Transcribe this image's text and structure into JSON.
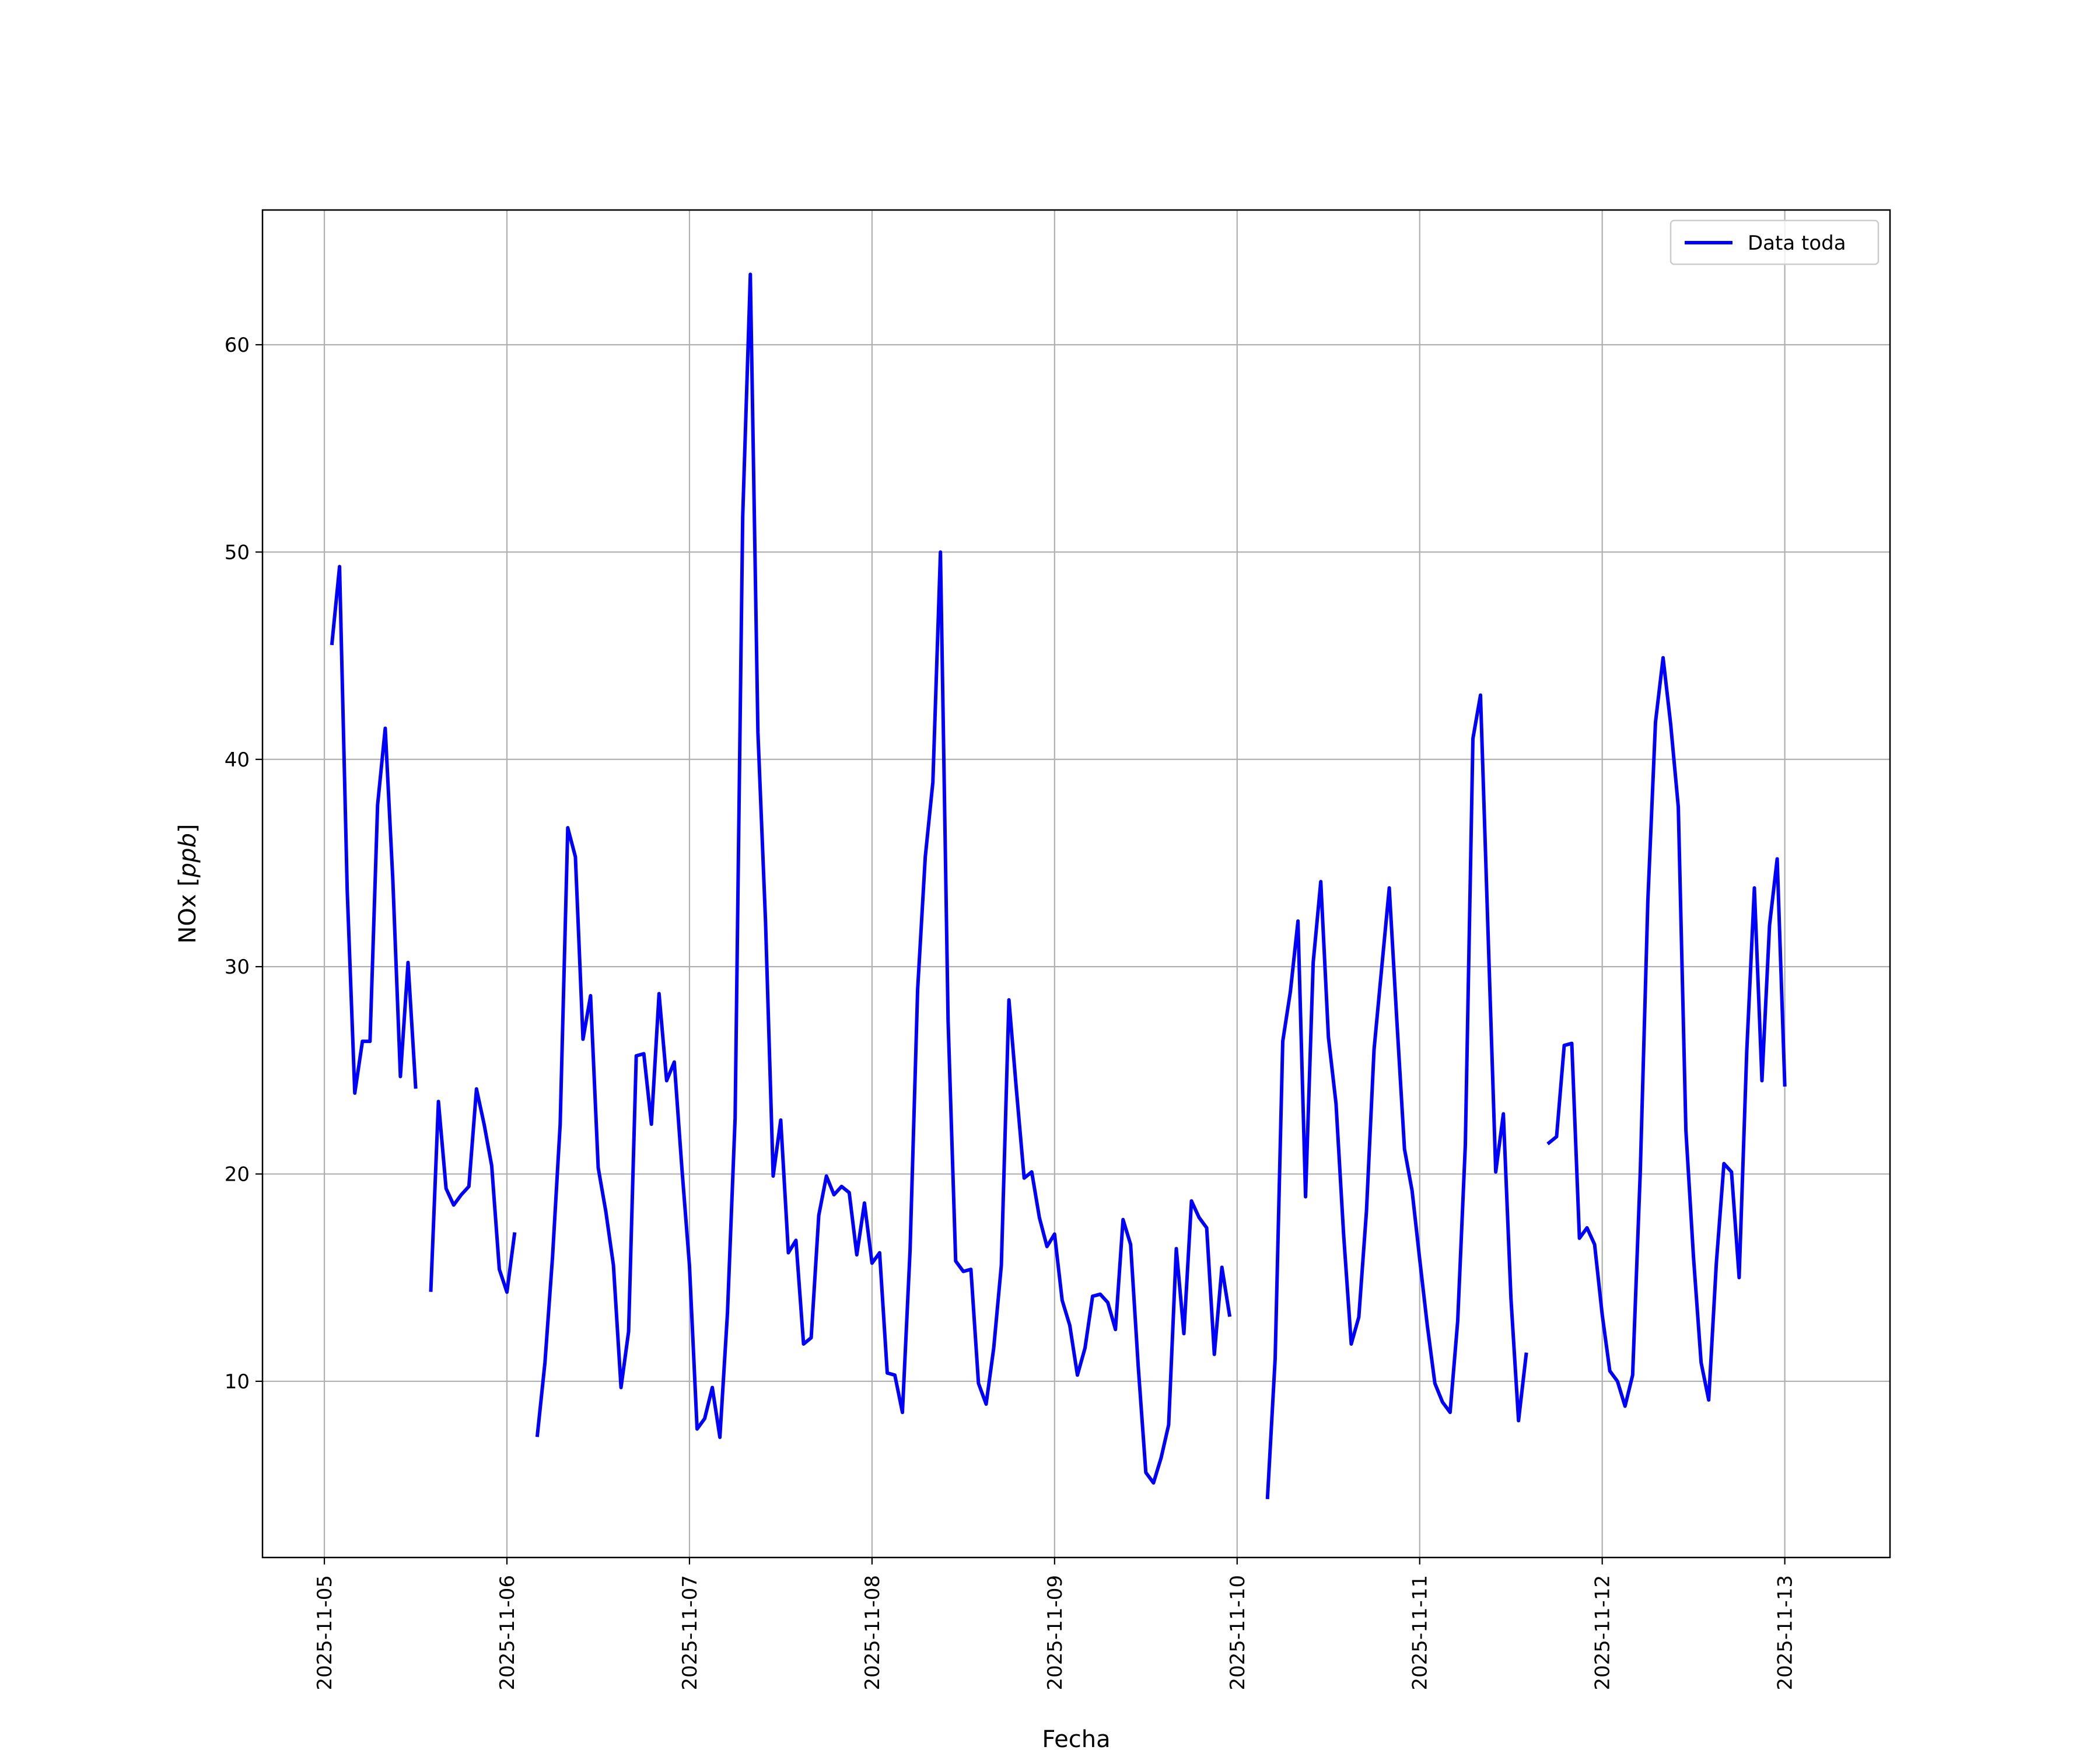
{
  "chart_data": {
    "type": "line",
    "xlabel": "Fecha",
    "ylabel": "NOx [ppb]",
    "ylabel_main": "NOx [",
    "ylabel_unit": "ppb",
    "ylabel_close": "]",
    "xlim": [
      "2025-11-04T15:52",
      "2025-11-13T13:50"
    ],
    "ylim": [
      1.5,
      66.5
    ],
    "x_ticks": [
      "2025-11-05",
      "2025-11-06",
      "2025-11-07",
      "2025-11-08",
      "2025-11-09",
      "2025-11-10",
      "2025-11-11",
      "2025-11-12",
      "2025-11-13"
    ],
    "y_ticks": [
      10,
      20,
      30,
      40,
      50,
      60
    ],
    "grid": true,
    "legend_position": "top-right",
    "line_color": "#0000ff",
    "series": [
      {
        "name": "Data toda",
        "segments": [
          [
            [
              "2025-11-05T01:00",
              45.6
            ],
            [
              "2025-11-05T02:00",
              49.3
            ],
            [
              "2025-11-05T03:00",
              33.7
            ],
            [
              "2025-11-05T04:00",
              23.9
            ],
            [
              "2025-11-05T05:00",
              26.4
            ],
            [
              "2025-11-05T06:00",
              26.4
            ],
            [
              "2025-11-05T07:00",
              37.8
            ],
            [
              "2025-11-05T08:00",
              41.5
            ],
            [
              "2025-11-05T09:00",
              34.2
            ],
            [
              "2025-11-05T10:00",
              24.7
            ],
            [
              "2025-11-05T11:00",
              30.2
            ],
            [
              "2025-11-05T12:00",
              24.2
            ]
          ],
          [
            [
              "2025-11-05T14:00",
              14.4
            ],
            [
              "2025-11-05T15:00",
              23.5
            ],
            [
              "2025-11-05T16:00",
              19.3
            ],
            [
              "2025-11-05T17:00",
              18.5
            ],
            [
              "2025-11-05T18:00",
              19.0
            ],
            [
              "2025-11-05T19:00",
              19.4
            ],
            [
              "2025-11-05T20:00",
              24.1
            ],
            [
              "2025-11-05T21:00",
              22.4
            ],
            [
              "2025-11-05T22:00",
              20.4
            ],
            [
              "2025-11-05T23:00",
              15.4
            ],
            [
              "2025-11-06T00:00",
              14.3
            ],
            [
              "2025-11-06T01:00",
              17.1
            ]
          ],
          [
            [
              "2025-11-06T04:00",
              7.4
            ],
            [
              "2025-11-06T05:00",
              10.9
            ],
            [
              "2025-11-06T06:00",
              16.0
            ],
            [
              "2025-11-06T07:00",
              22.4
            ],
            [
              "2025-11-06T08:00",
              36.7
            ],
            [
              "2025-11-06T09:00",
              35.3
            ],
            [
              "2025-11-06T10:00",
              26.5
            ],
            [
              "2025-11-06T11:00",
              28.6
            ],
            [
              "2025-11-06T12:00",
              20.3
            ],
            [
              "2025-11-06T13:00",
              18.2
            ],
            [
              "2025-11-06T14:00",
              15.6
            ],
            [
              "2025-11-06T15:00",
              9.7
            ],
            [
              "2025-11-06T16:00",
              12.4
            ],
            [
              "2025-11-06T17:00",
              25.7
            ],
            [
              "2025-11-06T18:00",
              25.8
            ],
            [
              "2025-11-06T19:00",
              22.4
            ],
            [
              "2025-11-06T20:00",
              28.7
            ],
            [
              "2025-11-06T21:00",
              24.5
            ],
            [
              "2025-11-06T22:00",
              25.4
            ],
            [
              "2025-11-06T23:00",
              20.3
            ],
            [
              "2025-11-07T00:00",
              15.6
            ],
            [
              "2025-11-07T01:00",
              7.7
            ],
            [
              "2025-11-07T02:00",
              8.2
            ],
            [
              "2025-11-07T03:00",
              9.7
            ],
            [
              "2025-11-07T04:00",
              7.3
            ],
            [
              "2025-11-07T05:00",
              13.3
            ],
            [
              "2025-11-07T06:00",
              22.7
            ],
            [
              "2025-11-07T07:00",
              51.7
            ],
            [
              "2025-11-07T08:00",
              63.4
            ],
            [
              "2025-11-07T09:00",
              41.3
            ],
            [
              "2025-11-07T10:00",
              32.2
            ],
            [
              "2025-11-07T11:00",
              19.9
            ],
            [
              "2025-11-07T12:00",
              22.6
            ],
            [
              "2025-11-07T13:00",
              16.2
            ],
            [
              "2025-11-07T14:00",
              16.8
            ],
            [
              "2025-11-07T15:00",
              11.8
            ],
            [
              "2025-11-07T16:00",
              12.1
            ],
            [
              "2025-11-07T17:00",
              18.0
            ],
            [
              "2025-11-07T18:00",
              19.9
            ],
            [
              "2025-11-07T19:00",
              19.0
            ],
            [
              "2025-11-07T20:00",
              19.4
            ],
            [
              "2025-11-07T21:00",
              19.1
            ],
            [
              "2025-11-07T22:00",
              16.1
            ],
            [
              "2025-11-07T23:00",
              18.6
            ],
            [
              "2025-11-08T00:00",
              15.7
            ],
            [
              "2025-11-08T01:00",
              16.2
            ],
            [
              "2025-11-08T02:00",
              10.4
            ],
            [
              "2025-11-08T03:00",
              10.3
            ],
            [
              "2025-11-08T04:00",
              8.5
            ],
            [
              "2025-11-08T05:00",
              16.3
            ],
            [
              "2025-11-08T06:00",
              28.9
            ],
            [
              "2025-11-08T07:00",
              35.3
            ],
            [
              "2025-11-08T08:00",
              38.9
            ],
            [
              "2025-11-08T09:00",
              50.0
            ],
            [
              "2025-11-08T10:00",
              27.4
            ],
            [
              "2025-11-08T11:00",
              15.8
            ],
            [
              "2025-11-08T12:00",
              15.3
            ],
            [
              "2025-11-08T13:00",
              15.4
            ],
            [
              "2025-11-08T14:00",
              9.9
            ],
            [
              "2025-11-08T15:00",
              8.9
            ],
            [
              "2025-11-08T16:00",
              11.6
            ],
            [
              "2025-11-08T17:00",
              15.6
            ],
            [
              "2025-11-08T18:00",
              28.4
            ],
            [
              "2025-11-08T19:00",
              24.0
            ],
            [
              "2025-11-08T20:00",
              19.8
            ],
            [
              "2025-11-08T21:00",
              20.1
            ],
            [
              "2025-11-08T22:00",
              17.9
            ],
            [
              "2025-11-08T23:00",
              16.5
            ],
            [
              "2025-11-09T00:00",
              17.1
            ],
            [
              "2025-11-09T01:00",
              13.9
            ],
            [
              "2025-11-09T02:00",
              12.7
            ],
            [
              "2025-11-09T03:00",
              10.3
            ],
            [
              "2025-11-09T04:00",
              11.6
            ],
            [
              "2025-11-09T05:00",
              14.1
            ],
            [
              "2025-11-09T06:00",
              14.2
            ],
            [
              "2025-11-09T07:00",
              13.8
            ],
            [
              "2025-11-09T08:00",
              12.5
            ],
            [
              "2025-11-09T09:00",
              17.8
            ],
            [
              "2025-11-09T10:00",
              16.6
            ],
            [
              "2025-11-09T11:00",
              10.7
            ],
            [
              "2025-11-09T12:00",
              5.6
            ],
            [
              "2025-11-09T13:00",
              5.1
            ],
            [
              "2025-11-09T14:00",
              6.3
            ],
            [
              "2025-11-09T15:00",
              7.9
            ],
            [
              "2025-11-09T16:00",
              16.4
            ],
            [
              "2025-11-09T17:00",
              12.3
            ],
            [
              "2025-11-09T18:00",
              18.7
            ],
            [
              "2025-11-09T19:00",
              17.9
            ],
            [
              "2025-11-09T20:00",
              17.4
            ],
            [
              "2025-11-09T21:00",
              11.3
            ],
            [
              "2025-11-09T22:00",
              15.5
            ],
            [
              "2025-11-09T23:00",
              13.2
            ]
          ],
          [
            [
              "2025-11-10T04:00",
              4.4
            ],
            [
              "2025-11-10T05:00",
              11.1
            ],
            [
              "2025-11-10T06:00",
              26.4
            ],
            [
              "2025-11-10T07:00",
              28.8
            ],
            [
              "2025-11-10T08:00",
              32.2
            ],
            [
              "2025-11-10T09:00",
              18.9
            ],
            [
              "2025-11-10T10:00",
              30.2
            ],
            [
              "2025-11-10T11:00",
              34.1
            ],
            [
              "2025-11-10T12:00",
              26.6
            ],
            [
              "2025-11-10T13:00",
              23.4
            ],
            [
              "2025-11-10T14:00",
              17.1
            ],
            [
              "2025-11-10T15:00",
              11.8
            ],
            [
              "2025-11-10T16:00",
              13.1
            ],
            [
              "2025-11-10T17:00",
              18.2
            ],
            [
              "2025-11-10T18:00",
              26.0
            ],
            [
              "2025-11-10T19:00",
              29.9
            ],
            [
              "2025-11-10T20:00",
              33.8
            ],
            [
              "2025-11-10T21:00",
              27.4
            ],
            [
              "2025-11-10T22:00",
              21.2
            ],
            [
              "2025-11-10T23:00",
              19.2
            ],
            [
              "2025-11-11T00:00",
              15.9
            ],
            [
              "2025-11-11T01:00",
              12.7
            ],
            [
              "2025-11-11T02:00",
              9.9
            ],
            [
              "2025-11-11T03:00",
              9.0
            ],
            [
              "2025-11-11T04:00",
              8.5
            ],
            [
              "2025-11-11T05:00",
              12.9
            ],
            [
              "2025-11-11T06:00",
              21.4
            ],
            [
              "2025-11-11T07:00",
              41.0
            ],
            [
              "2025-11-11T08:00",
              43.1
            ],
            [
              "2025-11-11T09:00",
              31.5
            ],
            [
              "2025-11-11T10:00",
              20.1
            ],
            [
              "2025-11-11T11:00",
              22.9
            ],
            [
              "2025-11-11T12:00",
              14.0
            ],
            [
              "2025-11-11T13:00",
              8.1
            ],
            [
              "2025-11-11T14:00",
              11.3
            ]
          ],
          [
            [
              "2025-11-11T17:00",
              21.5
            ],
            [
              "2025-11-11T18:00",
              21.8
            ],
            [
              "2025-11-11T19:00",
              26.2
            ],
            [
              "2025-11-11T20:00",
              26.3
            ],
            [
              "2025-11-11T21:00",
              16.9
            ],
            [
              "2025-11-11T22:00",
              17.4
            ],
            [
              "2025-11-11T23:00",
              16.6
            ],
            [
              "2025-11-12T00:00",
              13.2
            ],
            [
              "2025-11-12T01:00",
              10.5
            ],
            [
              "2025-11-12T02:00",
              10.0
            ],
            [
              "2025-11-12T03:00",
              8.8
            ],
            [
              "2025-11-12T04:00",
              10.3
            ],
            [
              "2025-11-12T05:00",
              20.1
            ],
            [
              "2025-11-12T06:00",
              33.2
            ],
            [
              "2025-11-12T07:00",
              41.8
            ],
            [
              "2025-11-12T08:00",
              44.9
            ],
            [
              "2025-11-12T09:00",
              41.7
            ],
            [
              "2025-11-12T10:00",
              37.7
            ],
            [
              "2025-11-12T11:00",
              22.1
            ],
            [
              "2025-11-12T12:00",
              16.0
            ],
            [
              "2025-11-12T13:00",
              10.9
            ],
            [
              "2025-11-12T14:00",
              9.1
            ],
            [
              "2025-11-12T15:00",
              15.7
            ],
            [
              "2025-11-12T16:00",
              20.5
            ],
            [
              "2025-11-12T17:00",
              20.1
            ],
            [
              "2025-11-12T18:00",
              15.0
            ],
            [
              "2025-11-12T19:00",
              25.9
            ],
            [
              "2025-11-12T20:00",
              33.8
            ],
            [
              "2025-11-12T21:00",
              24.5
            ],
            [
              "2025-11-12T22:00",
              32.0
            ],
            [
              "2025-11-12T23:00",
              35.2
            ],
            [
              "2025-11-13T00:00",
              24.3
            ]
          ]
        ]
      }
    ]
  }
}
